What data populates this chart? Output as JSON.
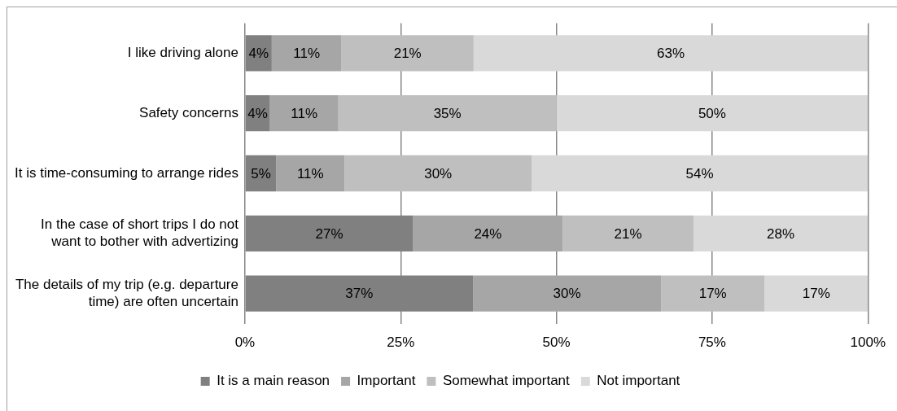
{
  "chart_data": {
    "type": "bar",
    "orientation": "horizontal",
    "stacked": true,
    "categories": [
      "I like driving alone",
      "Safety concerns",
      "It is time-consuming to arrange rides",
      "In the case of short trips I do not want to bother with advertizing",
      "The details of my trip (e.g. departure time) are often uncertain"
    ],
    "series": [
      {
        "name": "It is a main reason",
        "color": "#808080",
        "values": [
          4.3,
          4,
          5,
          27,
          36.6
        ],
        "value_labels": [
          "4%",
          "4%",
          "5%",
          "27%",
          "37%"
        ]
      },
      {
        "name": "Important",
        "color": "#a6a6a6",
        "values": [
          11.2,
          11,
          11,
          24,
          30.2
        ],
        "value_labels": [
          "11%",
          "11%",
          "11%",
          "24%",
          "30%"
        ]
      },
      {
        "name": "Somewhat important",
        "color": "#bfbfbf",
        "values": [
          21.2,
          35,
          30,
          21,
          16.6
        ],
        "value_labels": [
          "21%",
          "35%",
          "30%",
          "21%",
          "17%"
        ]
      },
      {
        "name": "Not important",
        "color": "#d9d9d9",
        "values": [
          63.3,
          50,
          54,
          28,
          16.6
        ],
        "value_labels": [
          "63%",
          "50%",
          "54%",
          "28%",
          "17%"
        ]
      }
    ],
    "xlim": [
      0,
      100
    ],
    "xticks": [
      {
        "value": 0,
        "label": "0%"
      },
      {
        "value": 25,
        "label": "25%"
      },
      {
        "value": 50,
        "label": "50%"
      },
      {
        "value": 75,
        "label": "75%"
      },
      {
        "value": 100,
        "label": "100%"
      }
    ],
    "grid": "x",
    "legend": "bottom"
  }
}
